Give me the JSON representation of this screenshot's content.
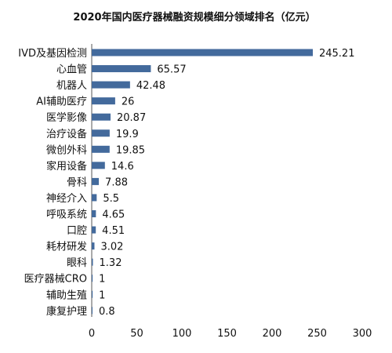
{
  "chart_data": {
    "type": "bar",
    "orientation": "horizontal",
    "title": "2020年国内医疗器械融资规模细分领域排名（亿元）",
    "categories": [
      "IVD及基因检测",
      "心血管",
      "机器人",
      "AI辅助医疗",
      "医学影像",
      "治疗设备",
      "微创外科",
      "家用设备",
      "骨科",
      "神经介入",
      "呼吸系统",
      "口腔",
      "耗材研发",
      "眼科",
      "医疗器械CRO",
      "辅助生殖",
      "康复护理"
    ],
    "values": [
      245.21,
      65.57,
      42.48,
      26,
      20.87,
      19.9,
      19.85,
      14.6,
      7.88,
      5.5,
      4.65,
      4.51,
      3.02,
      1.32,
      1,
      1,
      0.8
    ],
    "value_labels": [
      "245.21",
      "65.57",
      "42.48",
      "26",
      "20.87",
      "19.9",
      "19.85",
      "14.6",
      "7.88",
      "5.5",
      "4.65",
      "4.51",
      "3.02",
      "1.32",
      "1",
      "1",
      "0.8"
    ],
    "xlim": [
      0,
      300
    ],
    "xticks": [
      "0",
      "50",
      "100",
      "150",
      "200",
      "250",
      "300"
    ],
    "xlabel": "",
    "ylabel": "",
    "grid": false,
    "bar_color": "#436a9c"
  }
}
